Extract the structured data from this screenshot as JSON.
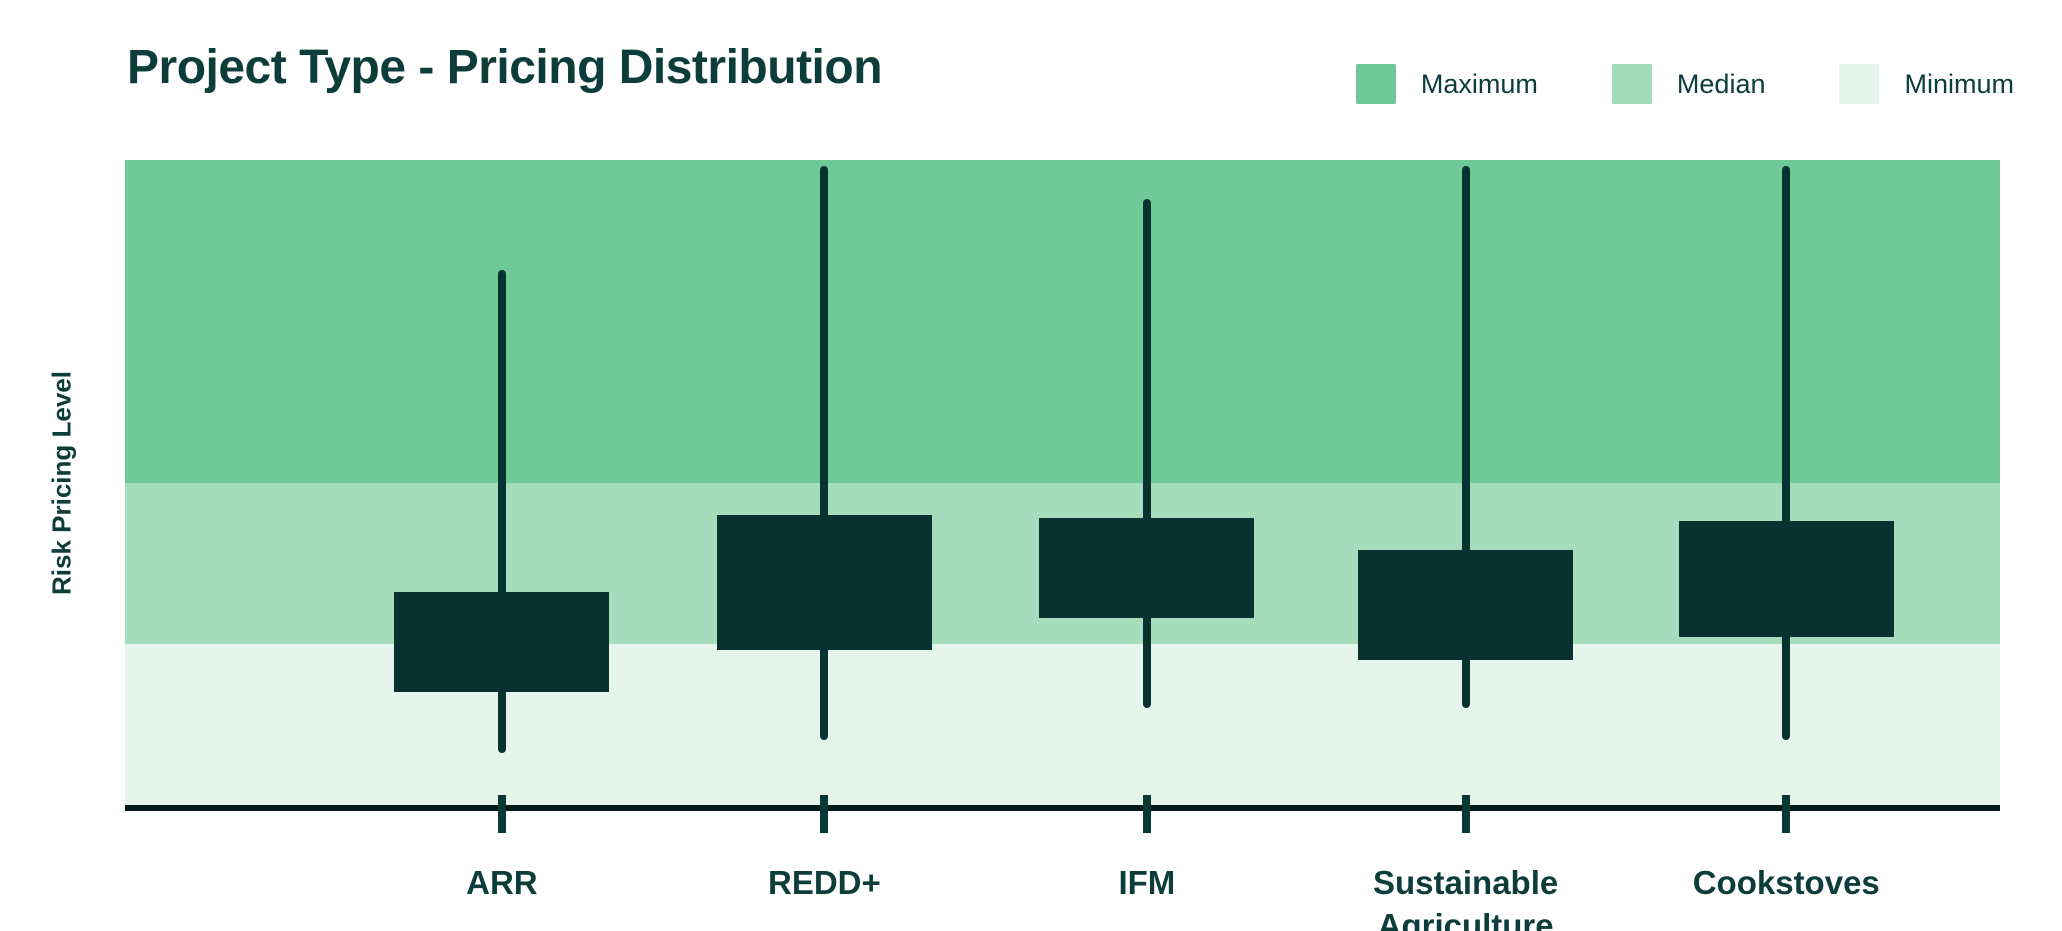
{
  "title": "Project Type - Pricing Distribution",
  "y_axis_label": "Risk Pricing Level",
  "legend": [
    {
      "label": "Maximum",
      "color": "#6fc998"
    },
    {
      "label": "Median",
      "color": "#a5dcbb"
    },
    {
      "label": "Minimum",
      "color": "#e6f5ec"
    }
  ],
  "chart_data": {
    "type": "boxplot",
    "title": "Project Type - Pricing Distribution",
    "ylabel": "Risk Pricing Level",
    "ylim": [
      0,
      100
    ],
    "grid": false,
    "legend_position": "top-right",
    "bands": [
      {
        "label": "Maximum",
        "from": 50,
        "to": 100,
        "color": "#6fc998"
      },
      {
        "label": "Median",
        "from": 25,
        "to": 50,
        "color": "#a5dcbb"
      },
      {
        "label": "Minimum",
        "from": 0,
        "to": 25,
        "color": "#e6f5ec"
      }
    ],
    "categories": [
      "ARR",
      "REDD+",
      "IFM",
      "Sustainable Agriculture",
      "Cookstoves"
    ],
    "series": [
      {
        "name": "ARR",
        "min": 8,
        "q1": 17.5,
        "q3": 33,
        "max": 83
      },
      {
        "name": "REDD+",
        "min": 10,
        "q1": 24,
        "q3": 45,
        "max": 99
      },
      {
        "name": "IFM",
        "min": 15,
        "q1": 29,
        "q3": 44.5,
        "max": 94
      },
      {
        "name": "Sustainable Agriculture",
        "min": 15,
        "q1": 22.5,
        "q3": 39.5,
        "max": 99
      },
      {
        "name": "Cookstoves",
        "min": 10,
        "q1": 26,
        "q3": 44,
        "max": 99
      }
    ],
    "x_centers_pct": [
      20.1,
      37.3,
      54.5,
      71.5,
      88.6
    ],
    "box_color": "#073230",
    "tick_color": "#0a3835",
    "axis_color": "#031b19"
  }
}
